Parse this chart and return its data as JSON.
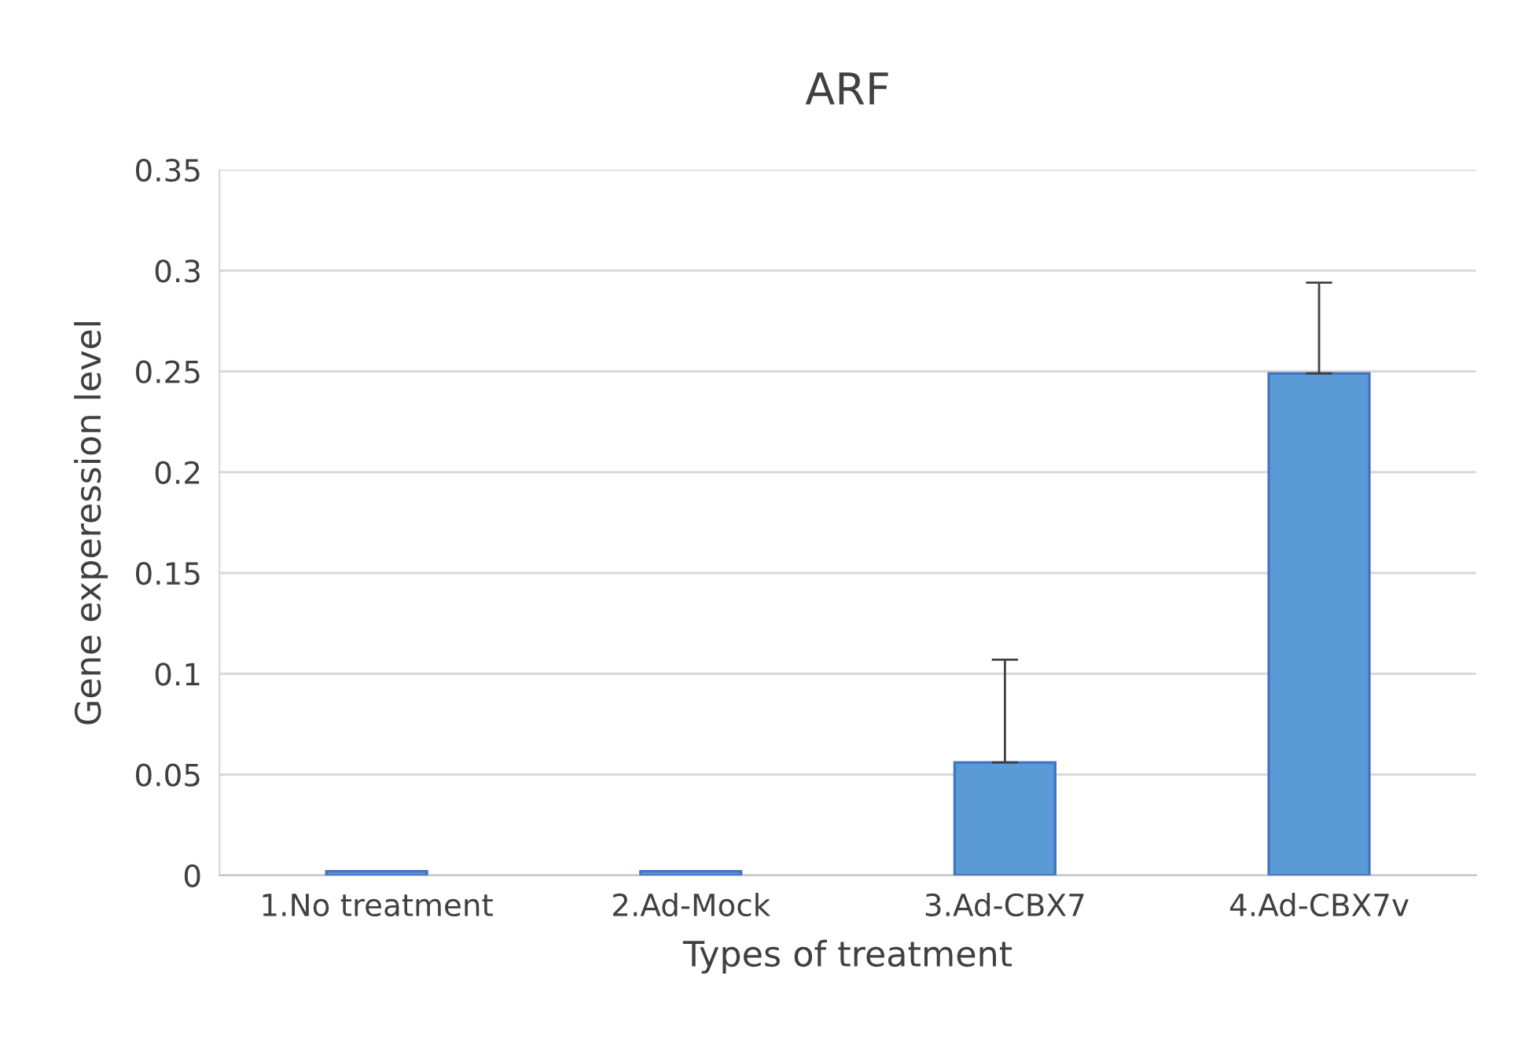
{
  "chart_data": {
    "type": "bar",
    "title": "ARF",
    "xlabel": "Types of treatment",
    "ylabel": "Gene experession level",
    "categories": [
      "1.No treatment",
      "2.Ad-Mock",
      "3.Ad-CBX7",
      "4.Ad-CBX7v"
    ],
    "values": [
      0.002,
      0.002,
      0.056,
      0.249
    ],
    "errors": [
      null,
      null,
      [
        0.056,
        0.107
      ],
      [
        0.249,
        0.294
      ]
    ],
    "color": "#5b9bd5",
    "ylim": [
      0,
      0.35
    ],
    "yticks": [
      0,
      0.05,
      0.1,
      0.15,
      0.2,
      0.25,
      0.3,
      0.35
    ],
    "grid": "y"
  }
}
